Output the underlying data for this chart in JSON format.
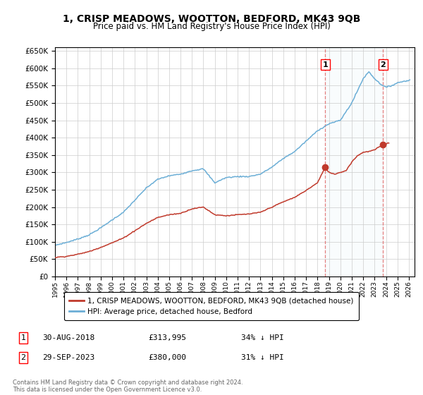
{
  "title": "1, CRISP MEADOWS, WOOTTON, BEDFORD, MK43 9QB",
  "subtitle": "Price paid vs. HM Land Registry's House Price Index (HPI)",
  "legend_line1": "1, CRISP MEADOWS, WOOTTON, BEDFORD, MK43 9QB (detached house)",
  "legend_line2": "HPI: Average price, detached house, Bedford",
  "transaction1_label": "1",
  "transaction1_date": "30-AUG-2018",
  "transaction1_price": "£313,995",
  "transaction1_hpi": "34% ↓ HPI",
  "transaction2_label": "2",
  "transaction2_date": "29-SEP-2023",
  "transaction2_price": "£380,000",
  "transaction2_hpi": "31% ↓ HPI",
  "footnote": "Contains HM Land Registry data © Crown copyright and database right 2024.\nThis data is licensed under the Open Government Licence v3.0.",
  "hpi_color": "#6baed6",
  "price_color": "#c0392b",
  "marker1_date": 2018.667,
  "marker1_price": 313995,
  "marker2_date": 2023.75,
  "marker2_price": 380000,
  "vline1_date": 2018.667,
  "vline2_date": 2023.75,
  "ylim_min": 0,
  "ylim_max": 660000,
  "xlim_min": 1995,
  "xlim_max": 2026.5,
  "figwidth": 6.0,
  "figheight": 5.6,
  "dpi": 100
}
